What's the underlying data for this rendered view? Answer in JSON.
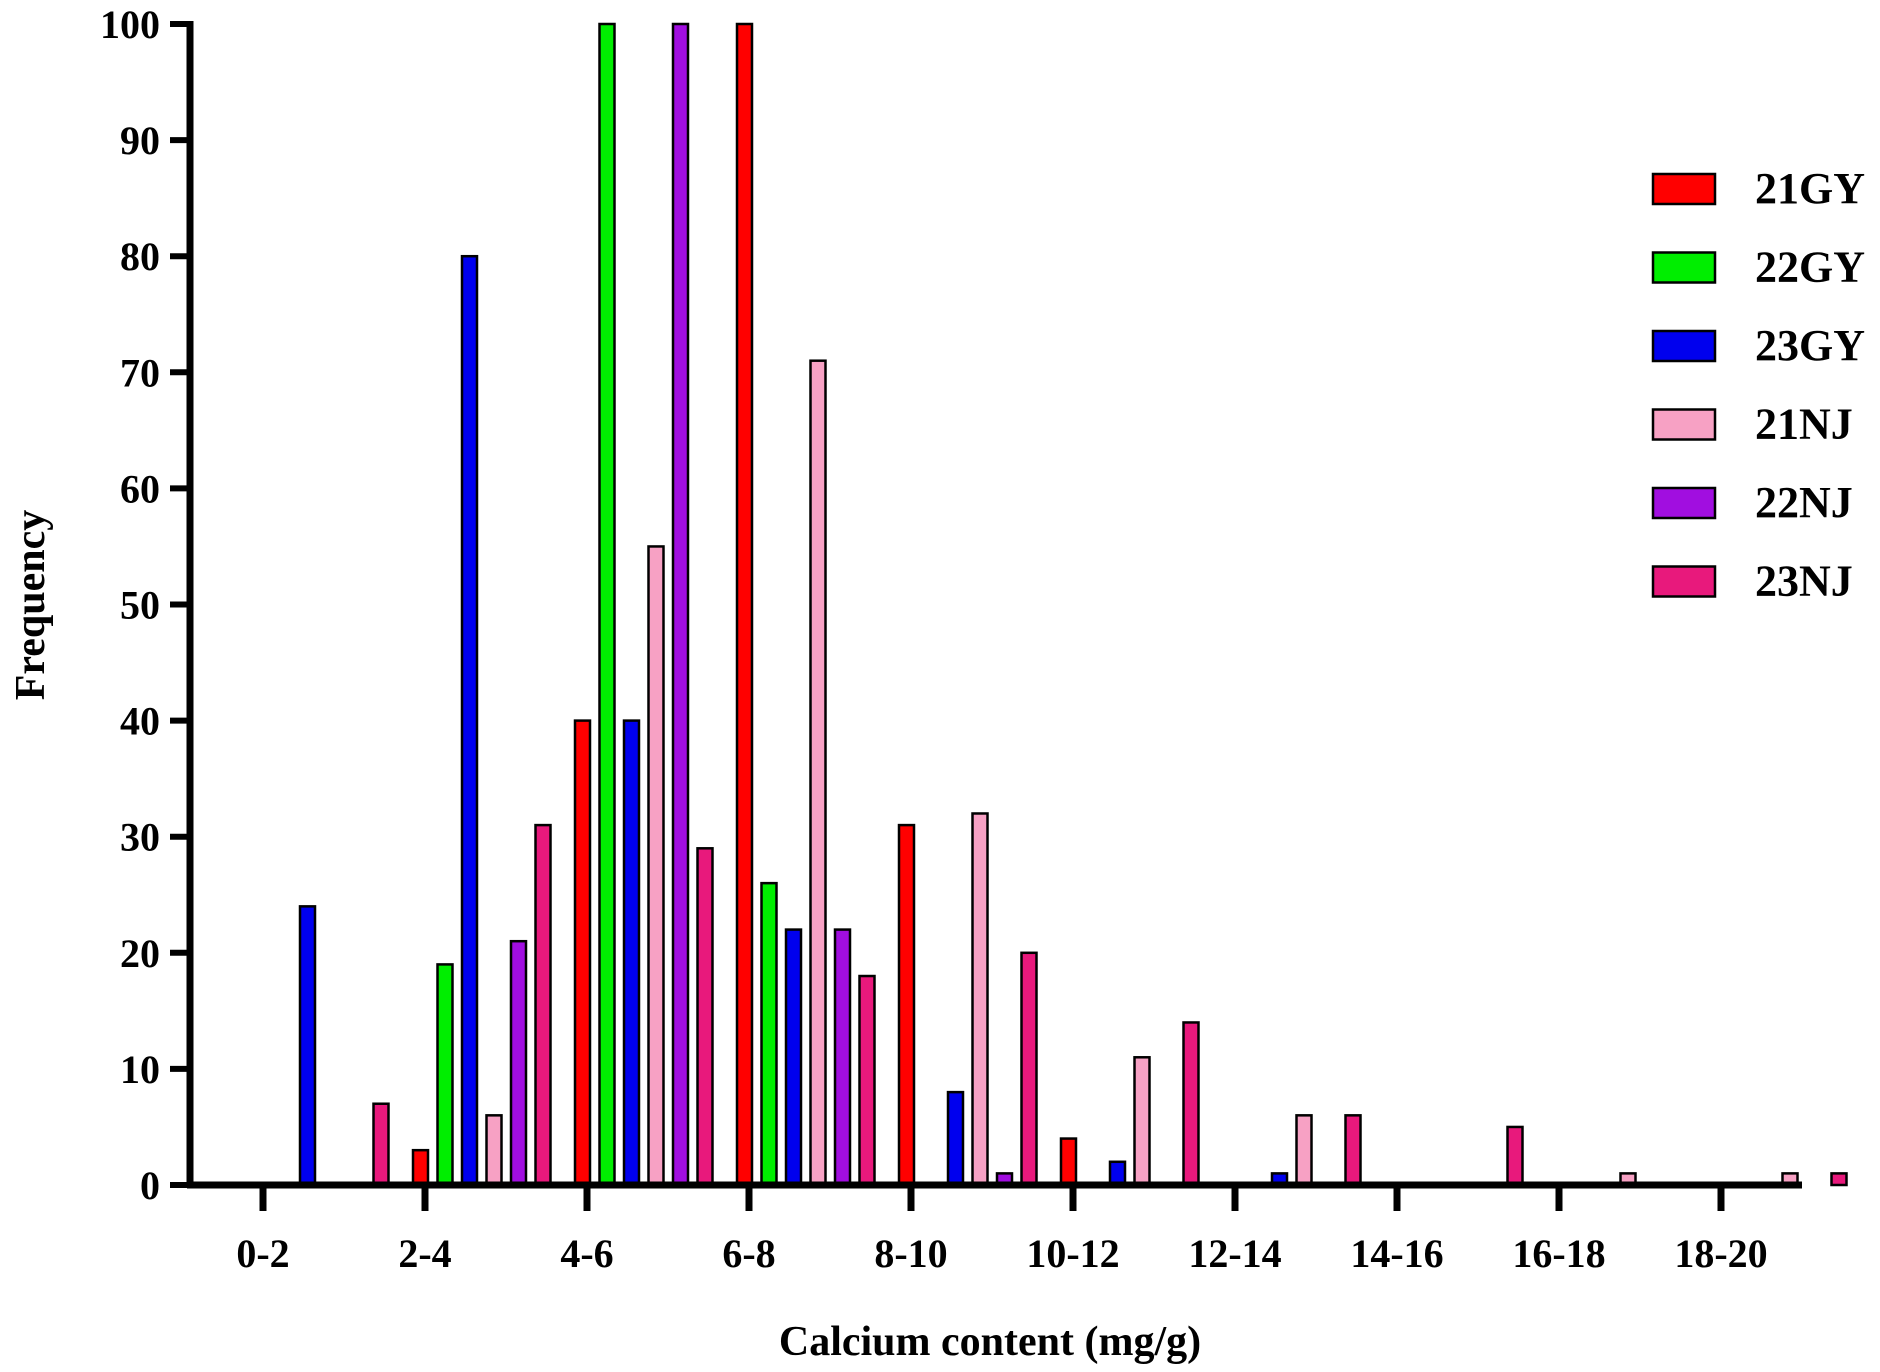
{
  "chart_data": {
    "type": "bar",
    "xlabel": "Calcium content (mg/g)",
    "ylabel": "Frequency",
    "ylim": [
      0,
      100
    ],
    "yticks": [
      0,
      10,
      20,
      30,
      40,
      50,
      60,
      70,
      80,
      90,
      100
    ],
    "grid": false,
    "legend_position": "right",
    "categories": [
      "0-2",
      "2-4",
      "4-6",
      "6-8",
      "8-10",
      "10-12",
      "12-14",
      "14-16",
      "16-18",
      "18-20"
    ],
    "series": [
      {
        "name": "21GY",
        "color": "#ff0000",
        "values": [
          0,
          3,
          40,
          100,
          31,
          4,
          0,
          0,
          0,
          0
        ]
      },
      {
        "name": "22GY",
        "color": "#00ee00",
        "values": [
          0,
          19,
          100,
          26,
          0,
          0,
          0,
          0,
          0,
          0
        ]
      },
      {
        "name": "23GY",
        "color": "#0000ee",
        "values": [
          24,
          80,
          40,
          22,
          8,
          2,
          1,
          0,
          0,
          0
        ]
      },
      {
        "name": "21NJ",
        "color": "#f7a1c4",
        "values": [
          0,
          6,
          55,
          71,
          32,
          11,
          6,
          0,
          1,
          1
        ]
      },
      {
        "name": "22NJ",
        "color": "#a10ee0",
        "values": [
          0,
          21,
          100,
          22,
          1,
          0,
          0,
          0,
          0,
          0
        ]
      },
      {
        "name": "23NJ",
        "color": "#e8197c",
        "values": [
          7,
          31,
          29,
          18,
          20,
          14,
          6,
          5,
          0,
          1
        ]
      }
    ]
  }
}
